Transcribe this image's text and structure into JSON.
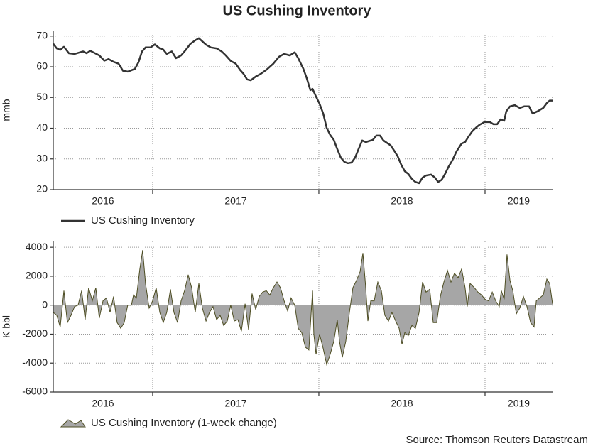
{
  "title": "US Cushing Inventory",
  "source": "Source: Thomson Reuters Datastream",
  "chart_data": [
    {
      "type": "line",
      "ylabel": "mmb",
      "xlim": [
        2016.402,
        2019.406
      ],
      "xticks": [
        2017,
        2018,
        2019
      ],
      "x_period_labels": [
        "2016",
        "2017",
        "2018",
        "2019"
      ],
      "ylim": [
        20,
        71.8
      ],
      "yticks": [
        20,
        30,
        40,
        50,
        60,
        70
      ],
      "grid": true,
      "series": [
        {
          "name": "US Cushing Inventory",
          "color": "#333333",
          "x": [
            2016.402,
            2016.423,
            2016.444,
            2016.466,
            2016.496,
            2016.53,
            2016.581,
            2016.603,
            2016.624,
            2016.679,
            2016.709,
            2016.735,
            2016.765,
            2016.795,
            2016.821,
            2016.85,
            2016.893,
            2016.915,
            2016.936,
            2016.957,
            2016.987,
            2017.013,
            2017.043,
            2017.064,
            2017.085,
            2017.115,
            2017.141,
            2017.171,
            2017.201,
            2017.226,
            2017.256,
            2017.278,
            2017.321,
            2017.35,
            2017.385,
            2017.415,
            2017.44,
            2017.47,
            2017.5,
            2017.526,
            2017.547,
            2017.568,
            2017.59,
            2017.62,
            2017.65,
            2017.684,
            2017.726,
            2017.761,
            2017.791,
            2017.825,
            2017.855,
            2017.876,
            2017.906,
            2017.927,
            2017.949,
            2017.962,
            2017.983,
            2018.004,
            2018.026,
            2018.047,
            2018.068,
            2018.09,
            2018.111,
            2018.132,
            2018.154,
            2018.175,
            2018.197,
            2018.218,
            2018.239,
            2018.261,
            2018.282,
            2018.325,
            2018.346,
            2018.368,
            2018.389,
            2018.432,
            2018.453,
            2018.474,
            2018.496,
            2018.517,
            2018.538,
            2018.56,
            2018.581,
            2018.603,
            2018.624,
            2018.645,
            2018.675,
            2018.697,
            2018.718,
            2018.739,
            2018.761,
            2018.782,
            2018.803,
            2018.829,
            2018.859,
            2018.88,
            2018.902,
            2018.923,
            2018.944,
            2018.966,
            2018.996,
            2019.03,
            2019.051,
            2019.073,
            2019.094,
            2019.115,
            2019.128,
            2019.15,
            2019.179,
            2019.209,
            2019.235,
            2019.265,
            2019.286,
            2019.316,
            2019.35,
            2019.372,
            2019.389,
            2019.406
          ],
          "values": [
            67.5,
            66,
            65.5,
            66.5,
            64.4,
            64.2,
            65,
            64.4,
            65.2,
            63.7,
            62,
            62.5,
            61.6,
            61,
            58.7,
            58.4,
            59.3,
            61.5,
            65,
            66.3,
            66.3,
            67.3,
            66,
            65.6,
            64.2,
            65,
            62.8,
            63.7,
            65.6,
            67.4,
            68.6,
            69.3,
            67.2,
            66.3,
            66,
            65,
            63.7,
            61.9,
            61,
            59,
            57.7,
            55.9,
            55.6,
            56.8,
            57.7,
            59,
            61,
            63.3,
            64.2,
            63.7,
            64.7,
            62.8,
            59.4,
            56.3,
            52.4,
            52.8,
            50.3,
            48,
            44.8,
            40.1,
            37.8,
            36.2,
            33.2,
            30.4,
            29,
            28.6,
            28.8,
            30.4,
            33.2,
            36,
            35.5,
            36.2,
            37.6,
            37.6,
            36,
            34.4,
            32.7,
            30.9,
            28.1,
            26,
            25.1,
            23.5,
            22.5,
            22.1,
            23.9,
            24.6,
            24.9,
            24,
            22.5,
            23.2,
            25.3,
            27.6,
            29.5,
            32.5,
            35,
            35.5,
            37.4,
            39,
            40.1,
            41.1,
            42,
            42,
            41.3,
            41.3,
            42.9,
            42.4,
            45.5,
            47.1,
            47.5,
            46.6,
            47.1,
            47.1,
            44.8,
            45.5,
            46.6,
            48.2,
            49,
            49
          ]
        }
      ]
    },
    {
      "type": "area",
      "ylabel": "K bbl",
      "xlim": [
        2016.402,
        2019.406
      ],
      "xticks": [
        2017,
        2018,
        2019
      ],
      "x_period_labels": [
        "2016",
        "2017",
        "2018",
        "2019"
      ],
      "ylim": [
        -6000,
        4400
      ],
      "yticks": [
        -6000,
        -4000,
        -2000,
        0,
        2000,
        4000
      ],
      "grid": true,
      "series": [
        {
          "name": "US Cushing Inventory (1-week change)",
          "color": "#a6a6a6",
          "edge_color": "#4d4d22",
          "x": [
            2016.402,
            2016.423,
            2016.444,
            2016.466,
            2016.487,
            2016.509,
            2016.53,
            2016.551,
            2016.573,
            2016.594,
            2016.615,
            2016.637,
            2016.658,
            2016.679,
            2016.701,
            2016.722,
            2016.744,
            2016.765,
            2016.786,
            2016.808,
            2016.829,
            2016.85,
            2016.872,
            2016.885,
            2016.902,
            2016.923,
            2016.94,
            2016.957,
            2016.979,
            2017.0,
            2017.021,
            2017.043,
            2017.064,
            2017.085,
            2017.107,
            2017.128,
            2017.15,
            2017.171,
            2017.192,
            2017.214,
            2017.235,
            2017.256,
            2017.278,
            2017.299,
            2017.321,
            2017.342,
            2017.363,
            2017.385,
            2017.406,
            2017.427,
            2017.449,
            2017.47,
            2017.491,
            2017.513,
            2017.534,
            2017.556,
            2017.577,
            2017.598,
            2017.62,
            2017.641,
            2017.662,
            2017.684,
            2017.705,
            2017.726,
            2017.748,
            2017.769,
            2017.791,
            2017.812,
            2017.833,
            2017.855,
            2017.876,
            2017.897,
            2017.919,
            2017.94,
            2017.962,
            2017.97,
            2017.983,
            2018.004,
            2018.026,
            2018.047,
            2018.068,
            2018.09,
            2018.111,
            2018.124,
            2018.141,
            2018.162,
            2018.184,
            2018.205,
            2018.226,
            2018.248,
            2018.265,
            2018.282,
            2018.295,
            2018.312,
            2018.333,
            2018.355,
            2018.376,
            2018.397,
            2018.419,
            2018.44,
            2018.462,
            2018.483,
            2018.5,
            2018.517,
            2018.538,
            2018.56,
            2018.581,
            2018.603,
            2018.624,
            2018.645,
            2018.667,
            2018.688,
            2018.709,
            2018.731,
            2018.752,
            2018.774,
            2018.795,
            2018.816,
            2018.838,
            2018.859,
            2018.88,
            2018.893,
            2018.91,
            2018.936,
            2018.957,
            2018.979,
            2019.0,
            2019.021,
            2019.043,
            2019.064,
            2019.085,
            2019.098,
            2019.115,
            2019.132,
            2019.15,
            2019.167,
            2019.188,
            2019.209,
            2019.231,
            2019.252,
            2019.274,
            2019.295,
            2019.308,
            2019.329,
            2019.35,
            2019.372,
            2019.389,
            2019.406
          ],
          "values": [
            -500,
            -700,
            -1500,
            1000,
            -1200,
            -700,
            -100,
            0,
            1000,
            -1000,
            1200,
            300,
            1200,
            -900,
            300,
            500,
            -500,
            600,
            -1200,
            -1600,
            -1200,
            0,
            0,
            700,
            500,
            2500,
            3800,
            1500,
            -200,
            300,
            1200,
            -500,
            -1200,
            -500,
            1100,
            -500,
            -1200,
            300,
            1000,
            2100,
            1200,
            -500,
            1500,
            -200,
            -1100,
            -500,
            -100,
            -1000,
            -700,
            -1400,
            -1100,
            0,
            -1100,
            -1000,
            -1800,
            100,
            -1700,
            800,
            -300,
            600,
            900,
            1000,
            700,
            1200,
            1600,
            1200,
            300,
            -400,
            500,
            0,
            -1600,
            -1900,
            -2900,
            -3100,
            1000,
            -2000,
            -3400,
            -2000,
            -3000,
            -4100,
            -3400,
            -2500,
            -1000,
            -2500,
            -3600,
            -2500,
            -500,
            1200,
            1700,
            2300,
            3600,
            1200,
            -1100,
            300,
            300,
            1600,
            1000,
            -700,
            -1100,
            -500,
            -1100,
            -1600,
            -2700,
            -1900,
            -2100,
            -1400,
            -1600,
            -500,
            1600,
            900,
            1100,
            -1200,
            -1200,
            600,
            1600,
            2400,
            1600,
            2200,
            1900,
            2500,
            1200,
            -100,
            1500,
            1200,
            900,
            700,
            400,
            300,
            900,
            300,
            -100,
            1000,
            400,
            3500,
            1700,
            1000,
            -600,
            -200,
            600,
            -100,
            -1200,
            -1500,
            300,
            500,
            700,
            1800,
            1500,
            100
          ]
        }
      ]
    }
  ]
}
